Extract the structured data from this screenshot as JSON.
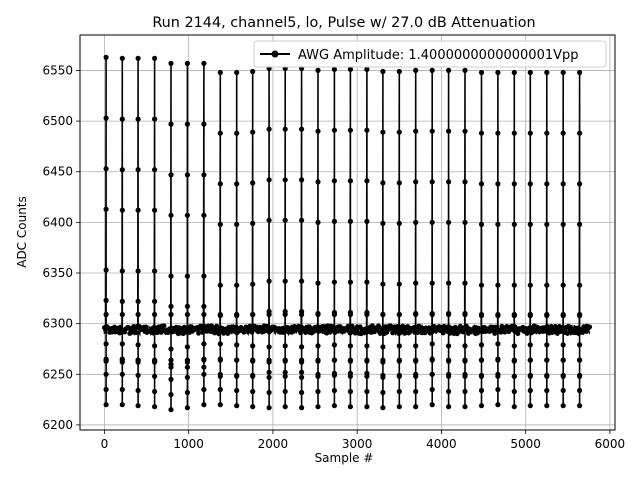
{
  "chart_data": {
    "type": "line",
    "title": "Run 2144, channel5, lo, Pulse w/ 27.0 dB Attenuation",
    "xlabel": "Sample #",
    "ylabel": "ADC Counts",
    "xlim": [
      -290,
      6060
    ],
    "ylim": [
      6195,
      6585
    ],
    "xticks": [
      0,
      1000,
      2000,
      3000,
      4000,
      5000,
      6000
    ],
    "yticks": [
      6200,
      6250,
      6300,
      6350,
      6400,
      6450,
      6500,
      6550
    ],
    "grid": true,
    "legend_position": "top-right",
    "color": "#000000",
    "series": [
      {
        "name": "AWG Amplitude: 1.4000000000000001Vpp",
        "baseline": 6294,
        "baseline_noise": 4,
        "x_range": [
          0,
          5760
        ],
        "pulse_x": [
          20,
          212,
          400,
          595,
          790,
          985,
          1180,
          1375,
          1570,
          1760,
          1955,
          2145,
          2340,
          2535,
          2730,
          2920,
          3115,
          3305,
          3500,
          3695,
          3890,
          4085,
          4280,
          4475,
          4670,
          4865,
          5055,
          5250,
          5445,
          5640
        ],
        "pulse_max": [
          6563,
          6562,
          6562,
          6562,
          6557,
          6557,
          6557,
          6548,
          6548,
          6549,
          6552,
          6552,
          6552,
          6550,
          6551,
          6551,
          6551,
          6549,
          6549,
          6550,
          6550,
          6550,
          6550,
          6548,
          6548,
          6548,
          6548,
          6548,
          6548,
          6548
        ],
        "pulse_min": [
          6220,
          6220,
          6219,
          6218,
          6215,
          6217,
          6220,
          6220,
          6219,
          6218,
          6217,
          6218,
          6217,
          6218,
          6219,
          6218,
          6218,
          6217,
          6218,
          6218,
          6220,
          6218,
          6218,
          6219,
          6220,
          6218,
          6219,
          6219,
          6219,
          6219
        ]
      }
    ]
  }
}
